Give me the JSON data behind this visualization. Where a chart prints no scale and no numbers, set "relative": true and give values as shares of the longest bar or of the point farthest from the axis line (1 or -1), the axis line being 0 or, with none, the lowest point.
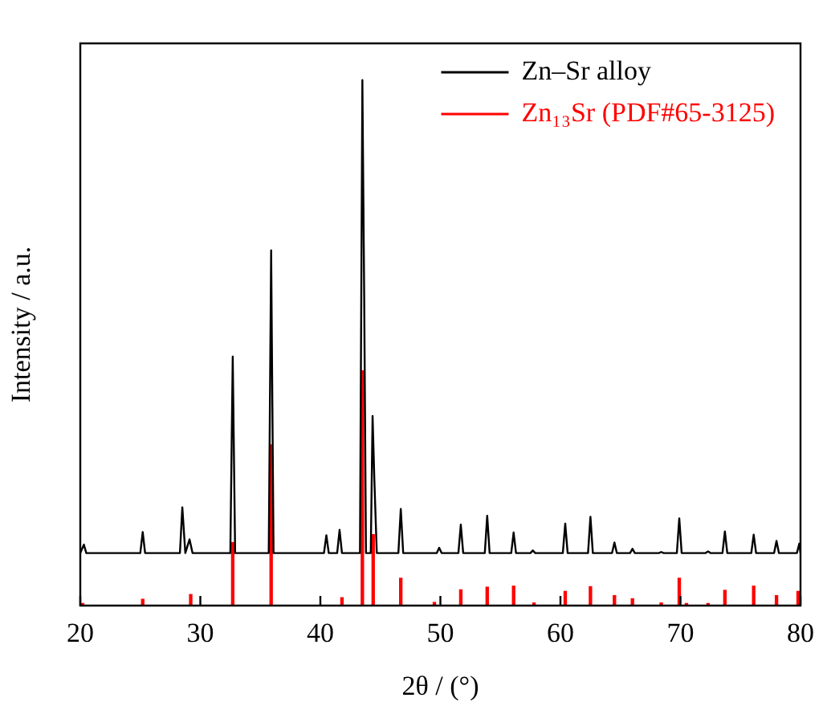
{
  "chart_data": {
    "type": "line",
    "xlabel": "2θ / (°)",
    "ylabel": "Intensity / a.u.",
    "relative": true,
    "xlim": [
      20,
      80
    ],
    "xticks": [
      20,
      30,
      40,
      50,
      60,
      70,
      80
    ],
    "legend": "top right",
    "grid": false,
    "marker": "none",
    "line_style": "solid",
    "series": [
      {
        "name": "Zn–Sr alloy",
        "color": "#000000",
        "x": [
          20,
          20.1,
          20.3,
          20.5,
          25,
          25.2,
          25.4,
          28.3,
          28.5,
          28.75,
          29.1,
          29.35,
          32.5,
          32.7,
          32.9,
          35.7,
          35.9,
          36.1,
          40.3,
          40.5,
          40.7,
          41.4,
          41.6,
          41.8,
          43.3,
          43.5,
          43.65,
          43.8,
          44.2,
          44.35,
          44.5,
          44.7,
          46.5,
          46.7,
          46.9,
          49.7,
          49.9,
          50.1,
          51.5,
          51.7,
          51.9,
          53.7,
          53.9,
          54.1,
          55.9,
          56.1,
          56.3,
          57.5,
          57.7,
          57.9,
          60.2,
          60.4,
          60.6,
          62.3,
          62.5,
          62.7,
          64.3,
          64.5,
          64.7,
          65.8,
          66,
          66.2,
          68.2,
          68.4,
          68.6,
          69.7,
          69.9,
          70.1,
          72.1,
          72.3,
          72.5,
          73.5,
          73.7,
          73.9,
          75.9,
          76.1,
          76.3,
          77.8,
          78,
          78.2,
          79.7,
          79.9,
          80
        ],
        "values": [
          0.1,
          0.1,
          0.116,
          0.1,
          0.1,
          0.14,
          0.1,
          0.1,
          0.187,
          0.1,
          0.126,
          0.1,
          0.1,
          0.474,
          0.1,
          0.1,
          0.676,
          0.1,
          0.1,
          0.134,
          0.1,
          0.1,
          0.144,
          0.1,
          0.1,
          1.0,
          0.593,
          0.1,
          0.1,
          0.361,
          0.238,
          0.1,
          0.1,
          0.184,
          0.1,
          0.1,
          0.11,
          0.1,
          0.1,
          0.154,
          0.1,
          0.1,
          0.171,
          0.1,
          0.1,
          0.139,
          0.1,
          0.1,
          0.105,
          0.1,
          0.1,
          0.156,
          0.1,
          0.1,
          0.169,
          0.1,
          0.1,
          0.12,
          0.1,
          0.1,
          0.108,
          0.1,
          0.1,
          0.102,
          0.1,
          0.1,
          0.166,
          0.1,
          0.1,
          0.103,
          0.1,
          0.1,
          0.141,
          0.1,
          0.1,
          0.135,
          0.1,
          0.1,
          0.123,
          0.1,
          0.1,
          0.118,
          0.1
        ]
      },
      {
        "name": "Zn₁₃Sr (PDF#65-3125)",
        "color": "#ff0000",
        "type": "bar",
        "x": [
          20.2,
          25.2,
          29.2,
          32.7,
          35.9,
          41.8,
          43.5,
          44.4,
          46.7,
          49.5,
          51.7,
          53.9,
          56.1,
          57.8,
          60.4,
          62.5,
          64.5,
          66,
          68.4,
          69.9,
          70.5,
          72.3,
          73.7,
          76.1,
          78,
          79.8
        ],
        "values": [
          0.004,
          0.012,
          0.021,
          0.12,
          0.306,
          0.015,
          0.447,
          0.135,
          0.052,
          0.006,
          0.03,
          0.035,
          0.037,
          0.005,
          0.027,
          0.036,
          0.019,
          0.013,
          0.005,
          0.052,
          0.004,
          0.004,
          0.029,
          0.037,
          0.019,
          0.027
        ]
      }
    ]
  }
}
